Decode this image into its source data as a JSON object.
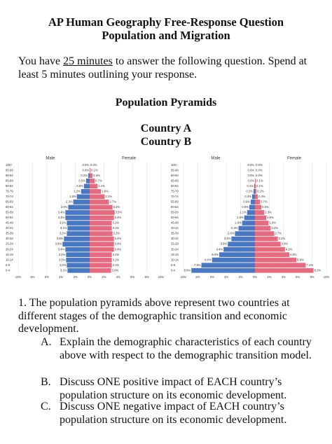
{
  "header": {
    "title": "AP Human Geography Free-Response Question",
    "subtitle": "Population and Migration"
  },
  "instructions": {
    "before": "You have",
    "emphasis": "25 minutes",
    "after": "to answer the following question. Spend at least 5 minutes outlining your response."
  },
  "section_title": "Population Pyramids",
  "chart_data": [
    {
      "type": "pyramid",
      "title": "Country A",
      "categories": [
        "100+",
        "95-99",
        "90-94",
        "85-89",
        "80-84",
        "75-79",
        "70-74",
        "65-69",
        "60-64",
        "55-59",
        "50-54",
        "45-49",
        "40-44",
        "35-39",
        "30-34",
        "25-29",
        "20-24",
        "15-19",
        "10-14",
        "5-9",
        "0-4"
      ],
      "series": [
        {
          "name": "Male",
          "color": "#4a78c0",
          "values": [
            0.0,
            0.0,
            0.2,
            0.5,
            0.8,
            1.2,
            1.8,
            2.3,
            3.0,
            3.4,
            3.4,
            3.2,
            3.1,
            3.2,
            3.6,
            3.8,
            3.4,
            3.3,
            3.3,
            3.2,
            3.1
          ],
          "value_labels": [
            "0.0%",
            "0.0%",
            "0.2%",
            "0.5%",
            "0.8%",
            "1.2%",
            "1.8%",
            "2.3%",
            "3.0%",
            "3.4%",
            "3.4%",
            "3.2%",
            "3.1%",
            "3.2%",
            "3.6%",
            "3.8%",
            "3.4%",
            "3.3%",
            "3.3%",
            "3.2%",
            "3.1%"
          ]
        },
        {
          "name": "Female",
          "color": "#e46c80",
          "values": [
            0.0,
            0.1,
            0.4,
            0.7,
            1.1,
            1.6,
            2.1,
            2.7,
            3.2,
            3.5,
            3.4,
            3.1,
            3.1,
            3.2,
            3.4,
            3.4,
            3.4,
            3.1,
            3.1,
            3.1,
            3.0
          ],
          "value_labels": [
            "0.0%",
            "0.1%",
            "0.4%",
            "0.7%",
            "1.1%",
            "1.6%",
            "2.1%",
            "2.7%",
            "3.2%",
            "3.5%",
            "3.4%",
            "3.1%",
            "3.1%",
            "3.2%",
            "3.4%",
            "3.4%",
            "3.4%",
            "3.1%",
            "3.1%",
            "3.1%",
            "3.0%"
          ]
        }
      ],
      "xlim": [
        0,
        10
      ],
      "xticks": [
        {
          "value": 0,
          "label": "0%"
        },
        {
          "value": 2,
          "label": "2%"
        },
        {
          "value": 4,
          "label": "4%"
        },
        {
          "value": 6,
          "label": "6%"
        },
        {
          "value": 8,
          "label": "8%"
        },
        {
          "value": 10,
          "label": "10%"
        }
      ],
      "grid": true
    },
    {
      "type": "pyramid",
      "title": "Country B",
      "categories": [
        "100+",
        "95-99",
        "90-94",
        "85-89",
        "80-84",
        "75-79",
        "70-74",
        "65-69",
        "60-64",
        "55-59",
        "50-54",
        "45-49",
        "40-44",
        "35-39",
        "30-34",
        "25-29",
        "20-24",
        "15-19",
        "10-14",
        "5-9",
        "0-4"
      ],
      "series": [
        {
          "name": "Male",
          "color": "#4a78c0",
          "values": [
            0.0,
            0.0,
            0.0,
            0.0,
            0.1,
            0.2,
            0.4,
            0.6,
            0.8,
            1.1,
            1.5,
            1.8,
            2.3,
            2.8,
            3.3,
            3.8,
            4.4,
            5.0,
            6.0,
            7.5,
            8.9
          ],
          "value_labels": [
            "0.0%",
            "0.0%",
            "0.0%",
            "0.0%",
            "0.1%",
            "0.2%",
            "0.4%",
            "0.6%",
            "0.8%",
            "1.1%",
            "1.5%",
            "1.8%",
            "2.3%",
            "2.8%",
            "3.3%",
            "3.8%",
            "4.4%",
            "5.0%",
            "6.0%",
            "7.5%",
            "8.9%"
          ]
        },
        {
          "name": "Female",
          "color": "#e46c80",
          "values": [
            0.0,
            0.0,
            0.0,
            0.1,
            0.1,
            0.2,
            0.4,
            0.7,
            0.9,
            1.3,
            1.6,
            1.9,
            2.2,
            2.7,
            3.2,
            3.6,
            4.2,
            4.8,
            5.8,
            7.1,
            8.2
          ],
          "value_labels": [
            "0.0%",
            "0.0%",
            "0.0%",
            "0.1%",
            "0.1%",
            "0.2%",
            "0.4%",
            "0.7%",
            "0.9%",
            "1.3%",
            "1.6%",
            "1.9%",
            "2.2%",
            "2.7%",
            "3.2%",
            "3.6%",
            "4.2%",
            "4.8%",
            "5.8%",
            "7.1%",
            "8.2%"
          ]
        }
      ],
      "xlim": [
        0,
        10
      ],
      "xticks": [
        {
          "value": 0,
          "label": "0%"
        },
        {
          "value": 2,
          "label": "2%"
        },
        {
          "value": 4,
          "label": "4%"
        },
        {
          "value": 6,
          "label": "6%"
        },
        {
          "value": 8,
          "label": "8%"
        },
        {
          "value": 10,
          "label": "10%"
        }
      ],
      "grid": true
    }
  ],
  "question": {
    "prompt": "1. The population pyramids above represent two countries at different stages of the demographic transition and economic development.",
    "items": [
      {
        "label": "A.",
        "text": "Explain the demographic characteristics of each country above with respect to the demographic transition model."
      },
      {
        "label": "B.",
        "text": "Discuss ONE positive impact of EACH country’s population structure on its economic development."
      },
      {
        "label": "C.",
        "text": "Discuss ONE negative impact of EACH country’s population structure on its economic development."
      }
    ]
  }
}
